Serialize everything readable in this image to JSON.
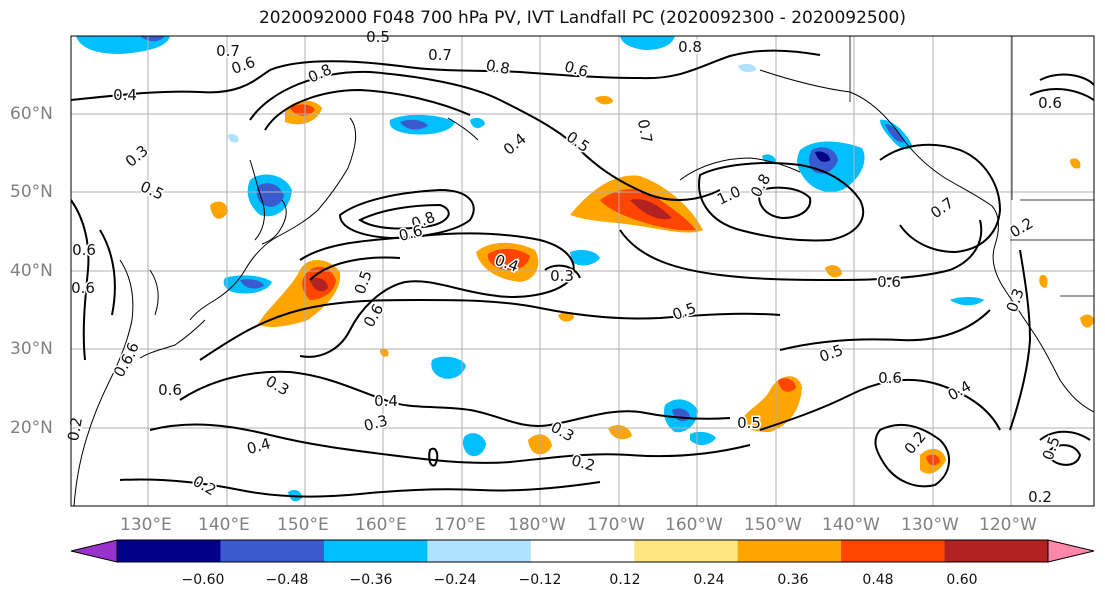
{
  "title": "2020092000 F048 700 hPa PV, IVT Landfall PC (2020092300 - 2020092500)",
  "lat_labels": [
    "60°N",
    "50°N",
    "40°N",
    "30°N",
    "20°N"
  ],
  "lon_labels": [
    "130°E",
    "140°E",
    "150°E",
    "160°E",
    "170°E",
    "180°W",
    "170°W",
    "160°W",
    "150°W",
    "140°W",
    "130°W",
    "120°W"
  ],
  "colorbar": {
    "ticks": [
      "−0.60",
      "−0.48",
      "−0.36",
      "−0.24",
      "−0.12",
      "0.12",
      "0.24",
      "0.36",
      "0.48",
      "0.60"
    ],
    "colors": [
      "#9932cc",
      "#00008b",
      "#3a5bcf",
      "#00bfff",
      "#b0e2ff",
      "#ffffff",
      "#ffe680",
      "#ffa500",
      "#ff4500",
      "#b22222",
      "#ff88aa"
    ]
  },
  "contour_labels": [
    {
      "text": "0.7"
    },
    {
      "text": "0.6"
    },
    {
      "text": "0.5"
    },
    {
      "text": "0.8"
    },
    {
      "text": "0.7"
    },
    {
      "text": "0.8"
    },
    {
      "text": "0.6"
    },
    {
      "text": "0.8"
    },
    {
      "text": "0.4"
    },
    {
      "text": "0.3"
    },
    {
      "text": "0.5"
    },
    {
      "text": "0.4"
    },
    {
      "text": "0.5"
    },
    {
      "text": "0.7"
    },
    {
      "text": "1.0"
    },
    {
      "text": "0.8"
    },
    {
      "text": "0.7"
    },
    {
      "text": "0.8"
    },
    {
      "text": "0.6"
    },
    {
      "text": "0.4"
    },
    {
      "text": "0.3"
    },
    {
      "text": "0.5"
    },
    {
      "text": "0.6"
    },
    {
      "text": "0.2"
    },
    {
      "text": "0.3"
    },
    {
      "text": "0.6"
    },
    {
      "text": "0.5"
    },
    {
      "text": "0.5"
    },
    {
      "text": "0.6"
    },
    {
      "text": "0.4"
    },
    {
      "text": "0.3"
    },
    {
      "text": "0.4"
    },
    {
      "text": "0.3"
    },
    {
      "text": "0.4"
    },
    {
      "text": "0.3"
    },
    {
      "text": "0.2"
    },
    {
      "text": "0.5"
    },
    {
      "text": "0.2"
    },
    {
      "text": "0.2"
    },
    {
      "text": "0.5"
    },
    {
      "text": "0.2"
    },
    {
      "text": "0.6"
    },
    {
      "text": "0.6"
    },
    {
      "text": "0.6"
    },
    {
      "text": "0.6"
    },
    {
      "text": "0.2"
    },
    {
      "text": "0.6"
    },
    {
      "text": "0.6"
    }
  ]
}
